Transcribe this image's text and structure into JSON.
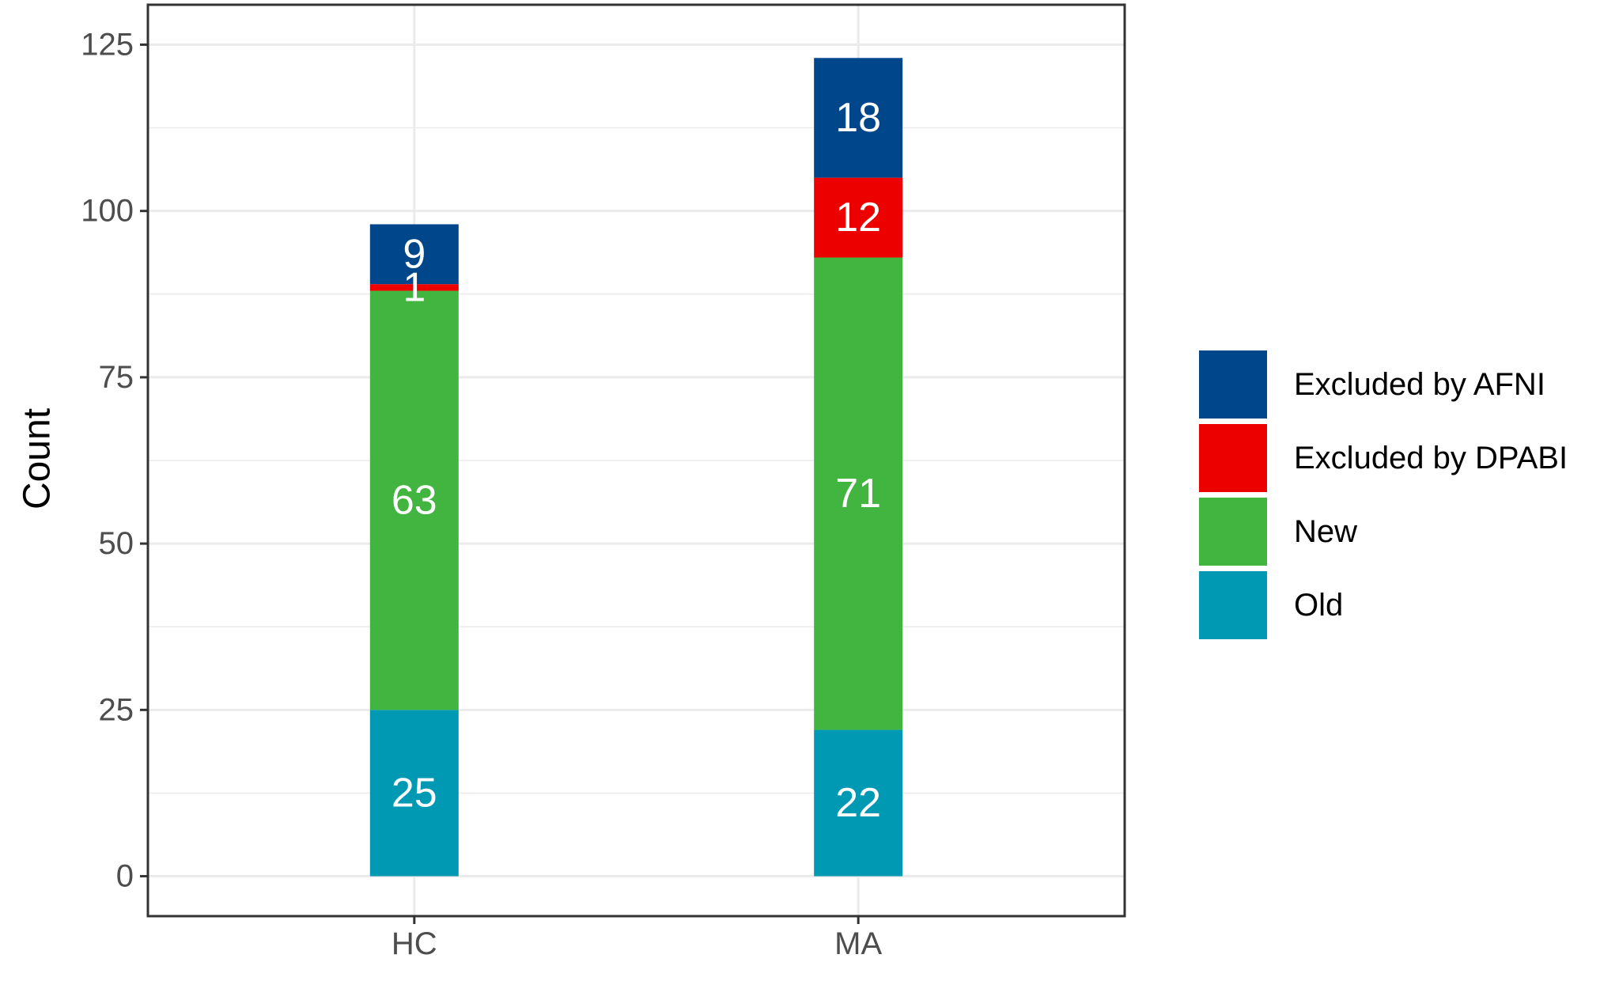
{
  "chart_data": {
    "type": "bar",
    "stacked": true,
    "categories": [
      "HC",
      "MA"
    ],
    "series": [
      {
        "name": "Old",
        "color": "#0099B4",
        "values": [
          25,
          22
        ]
      },
      {
        "name": "New",
        "color": "#42B540",
        "values": [
          63,
          71
        ]
      },
      {
        "name": "Excluded by DPABI",
        "color": "#ED0000",
        "values": [
          1,
          12
        ]
      },
      {
        "name": "Excluded by AFNI",
        "color": "#00468B",
        "values": [
          9,
          18
        ]
      }
    ],
    "legend_order": [
      "Excluded by AFNI",
      "Excluded by DPABI",
      "New",
      "Old"
    ],
    "legend_position": "right",
    "xlabel": "",
    "ylabel": "Count",
    "ylim": [
      -6,
      131
    ],
    "yticks": [
      0,
      25,
      50,
      75,
      100,
      125
    ],
    "grid": true,
    "data_labels": true
  }
}
